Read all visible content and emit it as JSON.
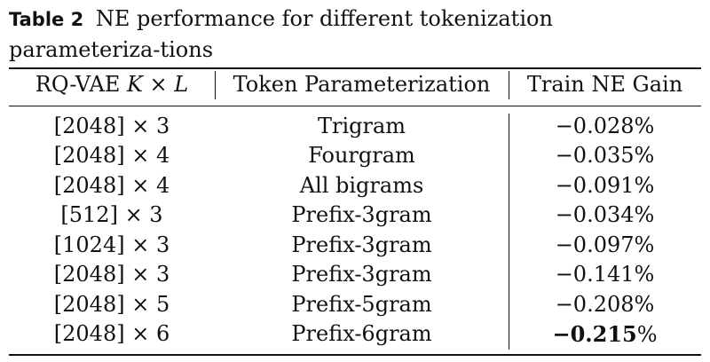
{
  "caption": {
    "label": "Table 2",
    "text": "NE performance for different tokenization parameteriza-tions"
  },
  "table": {
    "headers": {
      "col1_prefix": "RQ-VAE ",
      "col1_math": "K × L",
      "col2": "Token Parameterization",
      "col3": "Train NE Gain"
    },
    "rows": [
      {
        "config": "[2048] × 3",
        "param": "Trigram",
        "gain": "−0.028%",
        "best": false
      },
      {
        "config": "[2048] × 4",
        "param": "Fourgram",
        "gain": "−0.035%",
        "best": false
      },
      {
        "config": "[2048] × 4",
        "param": "All bigrams",
        "gain": "−0.091%",
        "best": false
      },
      {
        "config": "[512] × 3",
        "param": "Prefix-3gram",
        "gain": "−0.034%",
        "best": false
      },
      {
        "config": "[1024] × 3",
        "param": "Prefix-3gram",
        "gain": "−0.097%",
        "best": false
      },
      {
        "config": "[2048] × 3",
        "param": "Prefix-3gram",
        "gain": "−0.141%",
        "best": false
      },
      {
        "config": "[2048] × 5",
        "param": "Prefix-5gram",
        "gain": "−0.208%",
        "best": false
      },
      {
        "config": "[2048] × 6",
        "param": "Prefix-6gram",
        "gain_bold": "−0.215",
        "gain_suffix": "%",
        "best": true
      }
    ]
  }
}
